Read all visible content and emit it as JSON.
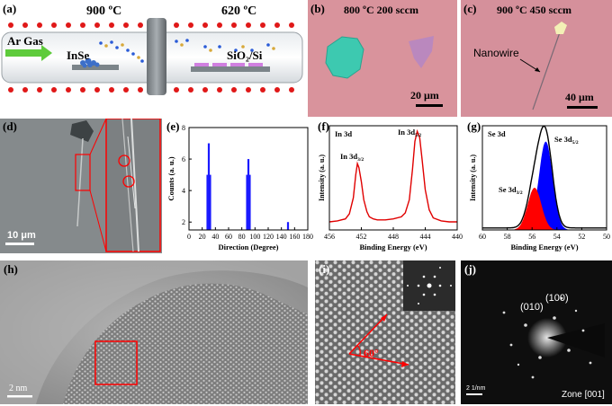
{
  "panels": {
    "a": {
      "label": "(a)",
      "temp_left": "900 ºC",
      "temp_right": "620 ºC",
      "gas": "Ar Gas",
      "source": "InSe",
      "substrate": "SiO₂/Si"
    },
    "b": {
      "label": "(b)",
      "condition": "800 ºC 200 sccm",
      "scale": "20 μm"
    },
    "c": {
      "label": "(c)",
      "condition": "900 ºC 450 sccm",
      "annotation": "Nanowire",
      "scale": "40 μm"
    },
    "d": {
      "label": "(d)",
      "scale": "10 μm"
    },
    "e": {
      "label": "(e)"
    },
    "f": {
      "label": "(f)"
    },
    "g": {
      "label": "(g)"
    },
    "h": {
      "label": "(h)",
      "scale": "2 nm"
    },
    "i": {
      "label": "(i)",
      "angle": "60°"
    },
    "j": {
      "label": "(j)",
      "spot1": "(100)",
      "spot2": "(010)",
      "zone": "Zone [001]",
      "scale": "2 1/nm"
    }
  },
  "chart_data": [
    {
      "id": "e",
      "type": "bar",
      "xlabel": "Direction (Degree)",
      "ylabel": "Counts (a. u.)",
      "xlim": [
        0,
        180
      ],
      "ylim": [
        1.5,
        8
      ],
      "xticks": [
        0,
        20,
        40,
        60,
        80,
        100,
        120,
        140,
        160,
        180
      ],
      "yticks": [
        2,
        4,
        6,
        8
      ],
      "bars": [
        {
          "x": 28,
          "y": 5
        },
        {
          "x": 30,
          "y": 7
        },
        {
          "x": 32,
          "y": 5
        },
        {
          "x": 88,
          "y": 5
        },
        {
          "x": 90,
          "y": 6
        },
        {
          "x": 92,
          "y": 5
        },
        {
          "x": 150,
          "y": 2
        }
      ],
      "color": "#1a1aff"
    },
    {
      "id": "f",
      "type": "line",
      "xlabel": "Binding Energy (eV)",
      "ylabel": "Intensity (a. u.)",
      "title": "In 3d",
      "xlim": [
        456,
        440
      ],
      "xticks": [
        456,
        452,
        448,
        444,
        440
      ],
      "peak_labels": [
        "In 3d3/2",
        "In 3d5/2"
      ],
      "x": [
        456,
        455,
        454,
        453.5,
        453,
        452.7,
        452.5,
        452.3,
        452,
        451.7,
        451.3,
        451,
        450.5,
        450,
        449,
        448,
        447,
        446.5,
        446,
        445.6,
        445.3,
        445,
        444.7,
        444.4,
        444,
        443.5,
        443,
        442,
        441,
        440
      ],
      "y": [
        0.08,
        0.09,
        0.11,
        0.16,
        0.32,
        0.55,
        0.66,
        0.62,
        0.48,
        0.3,
        0.18,
        0.13,
        0.11,
        0.1,
        0.1,
        0.11,
        0.13,
        0.17,
        0.3,
        0.6,
        0.88,
        0.98,
        0.92,
        0.7,
        0.4,
        0.2,
        0.12,
        0.09,
        0.08,
        0.08
      ],
      "color": "#e00000"
    },
    {
      "id": "g",
      "type": "area",
      "xlabel": "Binding Energy (eV)",
      "ylabel": "Intensity (a. u.)",
      "title": "Se 3d",
      "xlim": [
        60,
        50
      ],
      "xticks": [
        60,
        58,
        56,
        54,
        52,
        50
      ],
      "peak_labels": [
        "Se 3d5/2",
        "Se 3d3/2"
      ],
      "series": [
        {
          "name": "Se 3d5/2",
          "center": 54.9,
          "height": 0.88,
          "width": 0.55,
          "color": "#0000ff"
        },
        {
          "name": "Se 3d3/2",
          "center": 55.8,
          "height": 0.42,
          "width": 0.55,
          "color": "#ff0000"
        }
      ],
      "envelope_color": "#000000"
    }
  ]
}
